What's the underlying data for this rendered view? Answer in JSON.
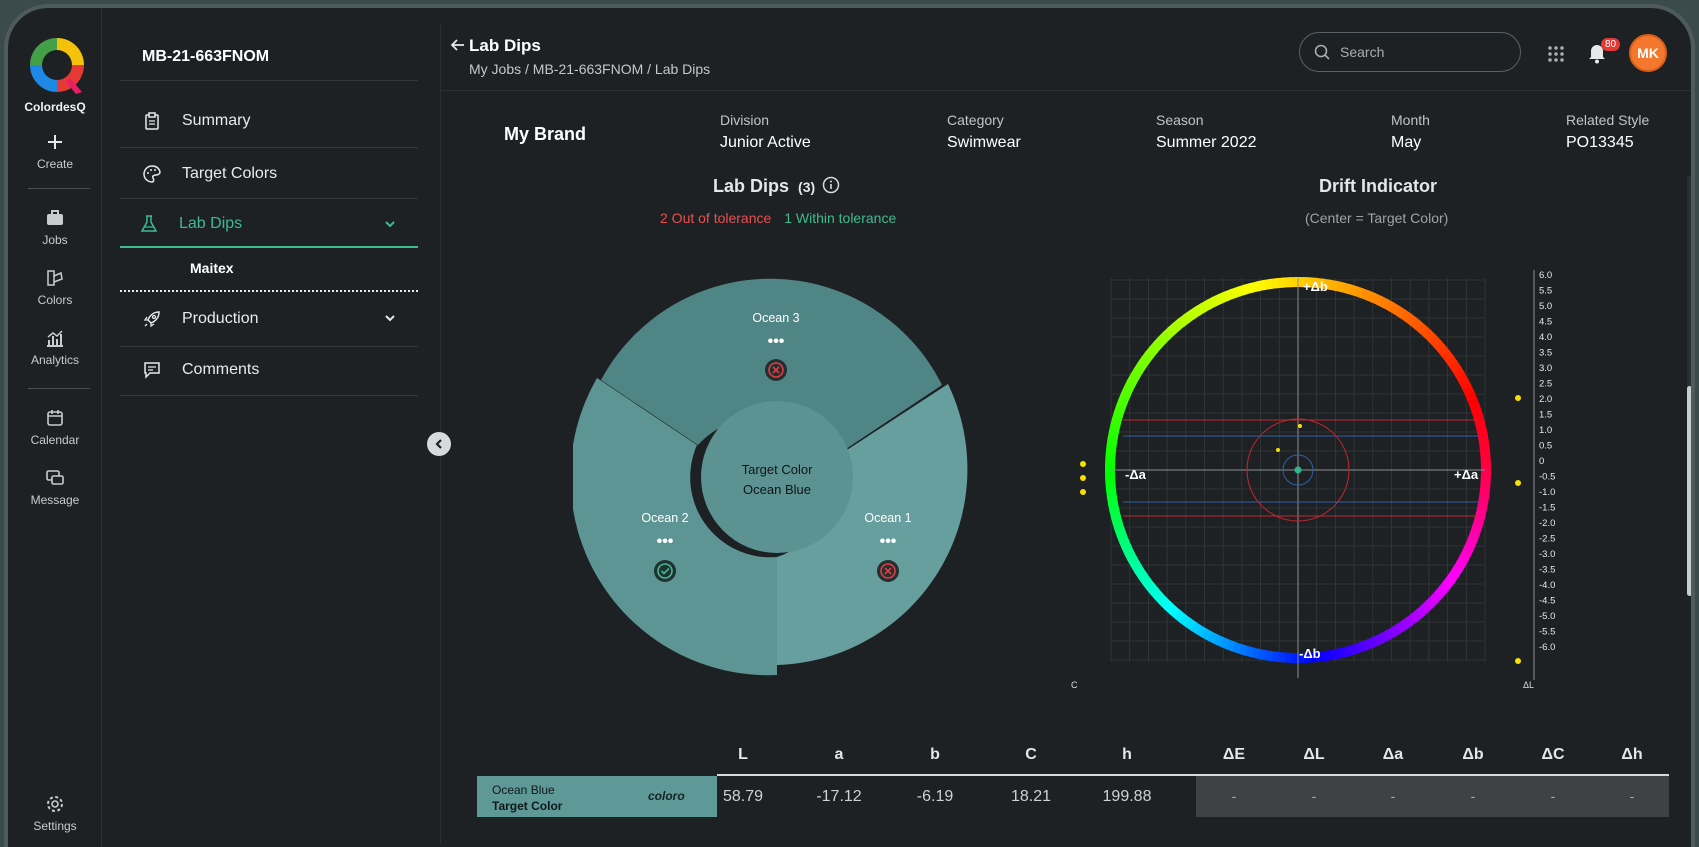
{
  "app": {
    "name": "ColordesQ"
  },
  "rail": {
    "items": [
      {
        "label": "Create",
        "icon": "plus-icon"
      },
      {
        "label": "Jobs",
        "icon": "briefcase-icon"
      },
      {
        "label": "Colors",
        "icon": "swatch-icon"
      },
      {
        "label": "Analytics",
        "icon": "analytics-icon"
      },
      {
        "label": "Calendar",
        "icon": "calendar-icon"
      },
      {
        "label": "Message",
        "icon": "message-icon"
      },
      {
        "label": "Settings",
        "icon": "gear-icon"
      }
    ]
  },
  "nav": {
    "job_id": "MB-21-663FNOM",
    "items": [
      {
        "label": "Summary",
        "icon": "clipboard-icon"
      },
      {
        "label": "Target Colors",
        "icon": "palette-icon"
      },
      {
        "label": "Lab Dips",
        "icon": "flask-icon"
      },
      {
        "label": "Production",
        "icon": "rocket-icon"
      },
      {
        "label": "Comments",
        "icon": "comment-icon"
      }
    ],
    "sub_item": "Maitex"
  },
  "header": {
    "title": "Lab Dips",
    "breadcrumb": "My Jobs / MB-21-663FNOM / Lab Dips",
    "search_placeholder": "Search",
    "notification_count": "80",
    "avatar_initials": "MK"
  },
  "job_meta": {
    "brand": "My Brand",
    "fields": [
      {
        "label": "Division",
        "value": "Junior Active"
      },
      {
        "label": "Category",
        "value": "Swimwear"
      },
      {
        "label": "Season",
        "value": "Summer 2022"
      },
      {
        "label": "Month",
        "value": "May"
      },
      {
        "label": "Related Style",
        "value": "PO13345"
      }
    ]
  },
  "lab_dips": {
    "title": "Lab Dips",
    "count": "(3)",
    "out_of_tolerance": "2 Out of tolerance",
    "within_tolerance": "1 Within tolerance",
    "center_line1": "Target Color",
    "center_line2": "Ocean Blue",
    "dips": [
      {
        "name": "Ocean 3",
        "status": "fail"
      },
      {
        "name": "Ocean 2",
        "status": "pass"
      },
      {
        "name": "Ocean 1",
        "status": "fail"
      }
    ]
  },
  "drift": {
    "title": "Drift Indicator",
    "subtitle": "(Center = Target Color)",
    "ticks": [
      "6.0",
      "5.5",
      "5.0",
      "4.5",
      "4.0",
      "3.5",
      "3.0",
      "2.5",
      "2.0",
      "1.5",
      "1.0",
      "0.5",
      "0",
      "-0.5",
      "-1.0",
      "-1.5",
      "-2.0",
      "-2.5",
      "-3.0",
      "-3.5",
      "-4.0",
      "-4.5",
      "-5.0",
      "-5.5",
      "-6.0"
    ],
    "label_plus_b": "+Δb",
    "label_minus_b": "-Δb",
    "label_plus_a": "+Δa",
    "label_minus_a": "-Δa",
    "left_axis": "ΔC",
    "right_axis": "ΔL"
  },
  "table": {
    "headers": [
      "L",
      "a",
      "b",
      "C",
      "h",
      "ΔE",
      "ΔL",
      "Δa",
      "Δb",
      "ΔC",
      "Δh"
    ],
    "target_name": "Ocean Blue",
    "target_label": "Target Color",
    "logo": "coloro",
    "values": [
      "58.79",
      "-17.12",
      "-6.19",
      "18.21",
      "199.88"
    ],
    "deltas": [
      "-",
      "-",
      "-",
      "-",
      "-",
      "-"
    ]
  },
  "colors": {
    "accent": "#3dbb8e",
    "fail": "#ea4f4f",
    "target_swatch": "#5e9897"
  }
}
